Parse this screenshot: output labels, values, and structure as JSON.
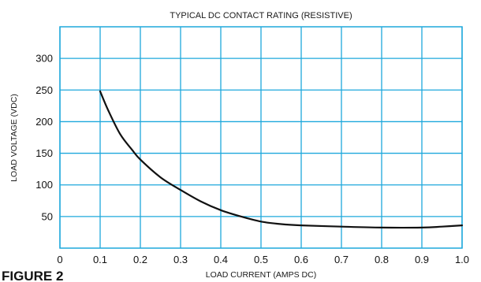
{
  "colors": {
    "grid": "#1ea8dc",
    "curve": "#111111",
    "text": "#1a1a1a"
  },
  "figure_label": "FIGURE 2",
  "chart_data": {
    "type": "line",
    "title": "TYPICAL DC CONTACT RATING (RESISTIVE)",
    "xlabel": "LOAD CURRENT (AMPS DC)",
    "ylabel": "LOAD VOLTAGE (VDC)",
    "xlim": [
      0,
      1.0
    ],
    "ylim": [
      0,
      350
    ],
    "x_ticks": [
      0,
      0.1,
      0.2,
      0.3,
      0.4,
      0.5,
      0.6,
      0.7,
      0.8,
      0.9,
      1.0
    ],
    "x_tick_labels": [
      "0",
      "0.1",
      "0.2",
      "0.3",
      "0.4",
      "0.5",
      "0.6",
      "0.7",
      "0.8",
      "0.9",
      "1.0"
    ],
    "y_ticks": [
      50,
      100,
      150,
      200,
      250,
      300
    ],
    "y_tick_labels": [
      "50",
      "100",
      "150",
      "200",
      "250",
      "300"
    ],
    "grid": true,
    "series": [
      {
        "x": [
          0.1,
          0.12,
          0.15,
          0.18,
          0.2,
          0.25,
          0.3,
          0.35,
          0.4,
          0.45,
          0.5,
          0.55,
          0.6,
          0.7,
          0.8,
          0.9,
          0.95,
          1.0
        ],
        "y": [
          248,
          218,
          180,
          155,
          140,
          112,
          92,
          74,
          60,
          50,
          42,
          38,
          36,
          34,
          32.5,
          32.5,
          34,
          36
        ]
      }
    ]
  }
}
